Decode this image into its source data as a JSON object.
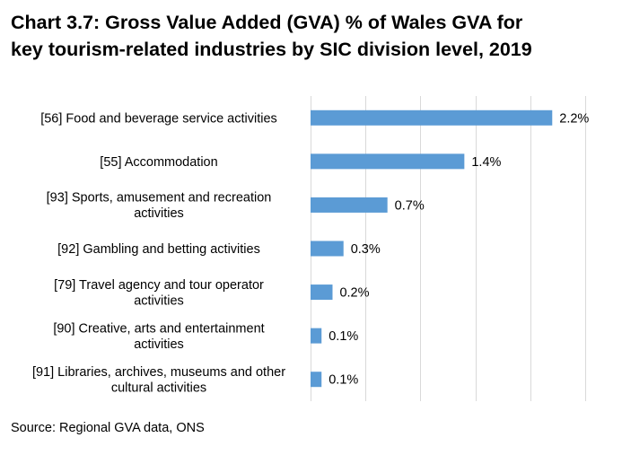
{
  "title_lines": [
    "Chart 3.7: Gross Value Added (GVA) % of Wales GVA for",
    "key tourism-related industries by SIC division level, 2019"
  ],
  "source": "Source: Regional GVA data, ONS",
  "colors": {
    "bar": "#5b9bd5",
    "grid": "#d9d9d9",
    "text": "#000000"
  },
  "chart_data": {
    "type": "bar",
    "orientation": "horizontal",
    "title": "Chart 3.7: Gross Value Added (GVA) % of Wales GVA for key tourism-related industries by SIC division level, 2019",
    "categories": [
      [
        "[56] Food and beverage service activities"
      ],
      [
        "[55] Accommodation"
      ],
      [
        "[93] Sports, amusement and recreation",
        "activities"
      ],
      [
        "[92] Gambling and betting activities"
      ],
      [
        "[79] Travel agency and tour operator",
        "activities"
      ],
      [
        "[90] Creative, arts and entertainment",
        "activities"
      ],
      [
        "[91] Libraries, archives, museums and other",
        "cultural activities"
      ]
    ],
    "values": [
      2.2,
      1.4,
      0.7,
      0.3,
      0.2,
      0.1,
      0.1
    ],
    "data_labels": [
      "2.2%",
      "1.4%",
      "0.7%",
      "0.3%",
      "0.2%",
      "0.1%",
      "0.1%"
    ],
    "xlim": [
      0,
      2.5
    ],
    "x_gridlines": [
      0,
      0.5,
      1.0,
      1.5,
      2.0,
      2.5
    ],
    "grid": true,
    "legend": "none",
    "xlabel": "",
    "ylabel": ""
  }
}
